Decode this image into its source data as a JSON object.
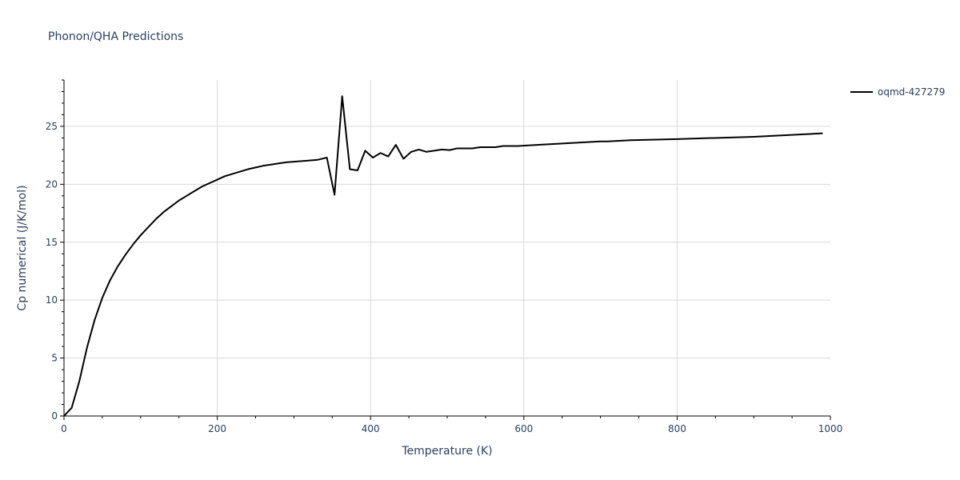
{
  "chart_data": {
    "type": "line",
    "title": "Phonon/QHA Predictions",
    "xlabel": "Temperature (K)",
    "ylabel": "Cp numerical (J/K/mol)",
    "xlim": [
      0,
      1000
    ],
    "ylim": [
      0,
      29
    ],
    "xticks": [
      0,
      200,
      400,
      600,
      800,
      1000
    ],
    "yticks": [
      0,
      5,
      10,
      15,
      20,
      25
    ],
    "grid": true,
    "legend_placement": "top-right, outside plot",
    "series": [
      {
        "name": "oqmd-427279",
        "color": "#000000",
        "x": [
          0,
          10,
          20,
          30,
          40,
          50,
          60,
          70,
          80,
          90,
          100,
          110,
          120,
          130,
          140,
          150,
          160,
          170,
          180,
          190,
          200,
          210,
          220,
          230,
          240,
          250,
          260,
          270,
          280,
          290,
          300,
          310,
          320,
          330,
          343,
          353,
          363,
          373,
          383,
          393,
          403,
          413,
          423,
          433,
          443,
          453,
          463,
          473,
          483,
          493,
          503,
          513,
          523,
          533,
          543,
          553,
          563,
          573,
          583,
          593,
          603,
          700,
          710,
          740,
          800,
          900,
          990
        ],
        "y": [
          0.0,
          0.7,
          3.0,
          5.9,
          8.3,
          10.2,
          11.7,
          12.9,
          13.9,
          14.8,
          15.6,
          16.3,
          17.0,
          17.6,
          18.1,
          18.6,
          19.0,
          19.4,
          19.8,
          20.1,
          20.4,
          20.7,
          20.9,
          21.1,
          21.3,
          21.45,
          21.6,
          21.7,
          21.8,
          21.9,
          21.95,
          22.0,
          22.05,
          22.1,
          22.3,
          19.1,
          27.6,
          21.3,
          21.2,
          22.9,
          22.3,
          22.7,
          22.4,
          23.4,
          22.2,
          22.8,
          23.0,
          22.8,
          22.9,
          23.0,
          22.95,
          23.1,
          23.1,
          23.1,
          23.2,
          23.2,
          23.2,
          23.3,
          23.3,
          23.3,
          23.35,
          23.7,
          23.7,
          23.8,
          23.9,
          24.1,
          24.4
        ]
      }
    ]
  }
}
